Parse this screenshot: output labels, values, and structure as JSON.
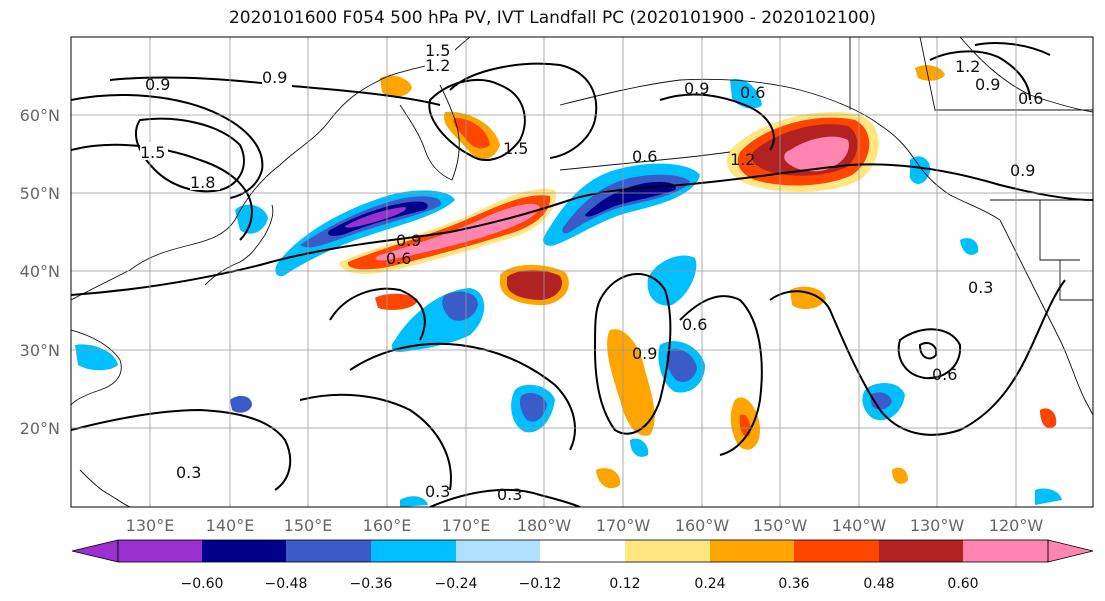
{
  "title": "2020101600 F054 500 hPa PV, IVT Landfall PC (2020101900 - 2020102100)",
  "lat_labels": [
    "60°N",
    "50°N",
    "40°N",
    "30°N",
    "20°N"
  ],
  "lon_labels": [
    "130°E",
    "140°E",
    "150°E",
    "160°E",
    "170°E",
    "180°W",
    "170°W",
    "160°W",
    "150°W",
    "140°W",
    "130°W",
    "120°W"
  ],
  "colorbar": {
    "colors": [
      "#9b30d0",
      "#00008b",
      "#3a5bc8",
      "#00bfff",
      "#b0e0ff",
      "#ffffff",
      "#ffe680",
      "#ffa500",
      "#ff4500",
      "#b22222",
      "#ff85b0"
    ],
    "tick_labels": [
      "−0.60",
      "−0.48",
      "−0.36",
      "−0.24",
      "−0.12",
      "0.12",
      "0.24",
      "0.36",
      "0.48",
      "0.60"
    ]
  },
  "contour_labels": [
    {
      "text": "0.9"
    },
    {
      "text": "1.2"
    },
    {
      "text": "1.5"
    },
    {
      "text": "1.5"
    },
    {
      "text": "1.8"
    },
    {
      "text": "1.5"
    },
    {
      "text": "0.9"
    },
    {
      "text": "0.6"
    },
    {
      "text": "0.9"
    },
    {
      "text": "1.2"
    },
    {
      "text": "0.6"
    },
    {
      "text": "0.9"
    },
    {
      "text": "0.6"
    },
    {
      "text": "0.9"
    },
    {
      "text": "0.6"
    },
    {
      "text": "0.9"
    },
    {
      "text": "0.3"
    },
    {
      "text": "0.6"
    },
    {
      "text": "0.3"
    },
    {
      "text": "0.3"
    },
    {
      "text": "0.3"
    },
    {
      "text": "1.2"
    },
    {
      "text": "0.6"
    },
    {
      "text": "0.9"
    }
  ]
}
